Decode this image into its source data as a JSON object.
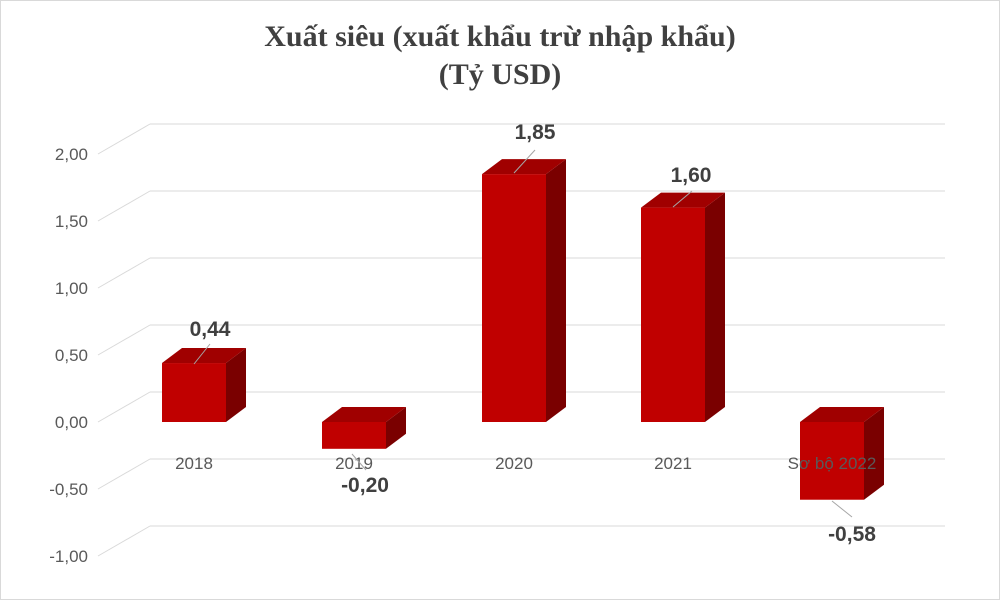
{
  "chart_data": {
    "type": "bar",
    "title": "Xuất siêu (xuất khẩu trừ nhập khẩu)",
    "subtitle": "(Tỷ USD)",
    "categories": [
      "2018",
      "2019",
      "2020",
      "2021",
      "Sơ bộ 2022"
    ],
    "values": [
      0.44,
      -0.2,
      1.85,
      1.6,
      -0.58
    ],
    "value_labels": [
      "0,44",
      "-0,20",
      "1,85",
      "1,60",
      "-0,58"
    ],
    "y_ticks": [
      -1.0,
      -0.5,
      0.0,
      0.5,
      1.0,
      1.5,
      2.0
    ],
    "y_tick_labels": [
      "-1,00",
      "-0,50",
      "0,00",
      "0,50",
      "1,00",
      "1,50",
      "2,00"
    ],
    "ylim": [
      -1.0,
      2.0
    ],
    "grid": true,
    "style": "3d-column",
    "colors": {
      "bar_front": "#c00000",
      "bar_side": "#7a0000",
      "bar_top": "#a00000",
      "grid": "#d9d9d9",
      "leader": "#a6a6a6"
    }
  }
}
